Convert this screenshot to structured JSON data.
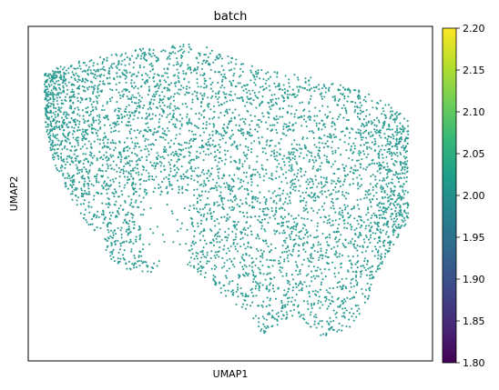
{
  "chart_data": {
    "type": "scatter",
    "title": "batch",
    "xlabel": "UMAP1",
    "ylabel": "UMAP2",
    "point_color": "#2c9c92",
    "color_value": 2.0,
    "colorbar": {
      "colormap": "viridis",
      "range": [
        1.8,
        2.2
      ],
      "ticks": [
        "1.80",
        "1.85",
        "1.90",
        "1.95",
        "2.00",
        "2.05",
        "2.10",
        "2.15",
        "2.20"
      ],
      "stops": [
        "#440154",
        "#482878",
        "#3e4989",
        "#31688e",
        "#26828e",
        "#1f9e89",
        "#35b779",
        "#6ece58",
        "#b5de2b",
        "#fde725"
      ]
    },
    "point_count_estimate": 5000,
    "xlim": [
      0,
      1
    ],
    "ylim": [
      0,
      1
    ],
    "cloud_outline_upper": [
      [
        0.04,
        0.86
      ],
      [
        0.12,
        0.9
      ],
      [
        0.22,
        0.92
      ],
      [
        0.3,
        0.94
      ],
      [
        0.38,
        0.95
      ],
      [
        0.44,
        0.94
      ],
      [
        0.5,
        0.91
      ],
      [
        0.58,
        0.87
      ],
      [
        0.66,
        0.86
      ],
      [
        0.72,
        0.84
      ],
      [
        0.8,
        0.82
      ],
      [
        0.88,
        0.78
      ],
      [
        0.94,
        0.72
      ],
      [
        0.97,
        0.62
      ],
      [
        0.98,
        0.5
      ]
    ],
    "cloud_outline_lower": [
      [
        0.04,
        0.72
      ],
      [
        0.06,
        0.6
      ],
      [
        0.1,
        0.5
      ],
      [
        0.16,
        0.38
      ],
      [
        0.22,
        0.28
      ],
      [
        0.3,
        0.26
      ],
      [
        0.36,
        0.32
      ],
      [
        0.44,
        0.24
      ],
      [
        0.52,
        0.16
      ],
      [
        0.58,
        0.08
      ],
      [
        0.66,
        0.14
      ],
      [
        0.74,
        0.06
      ],
      [
        0.82,
        0.12
      ],
      [
        0.88,
        0.3
      ],
      [
        0.94,
        0.42
      ]
    ]
  }
}
